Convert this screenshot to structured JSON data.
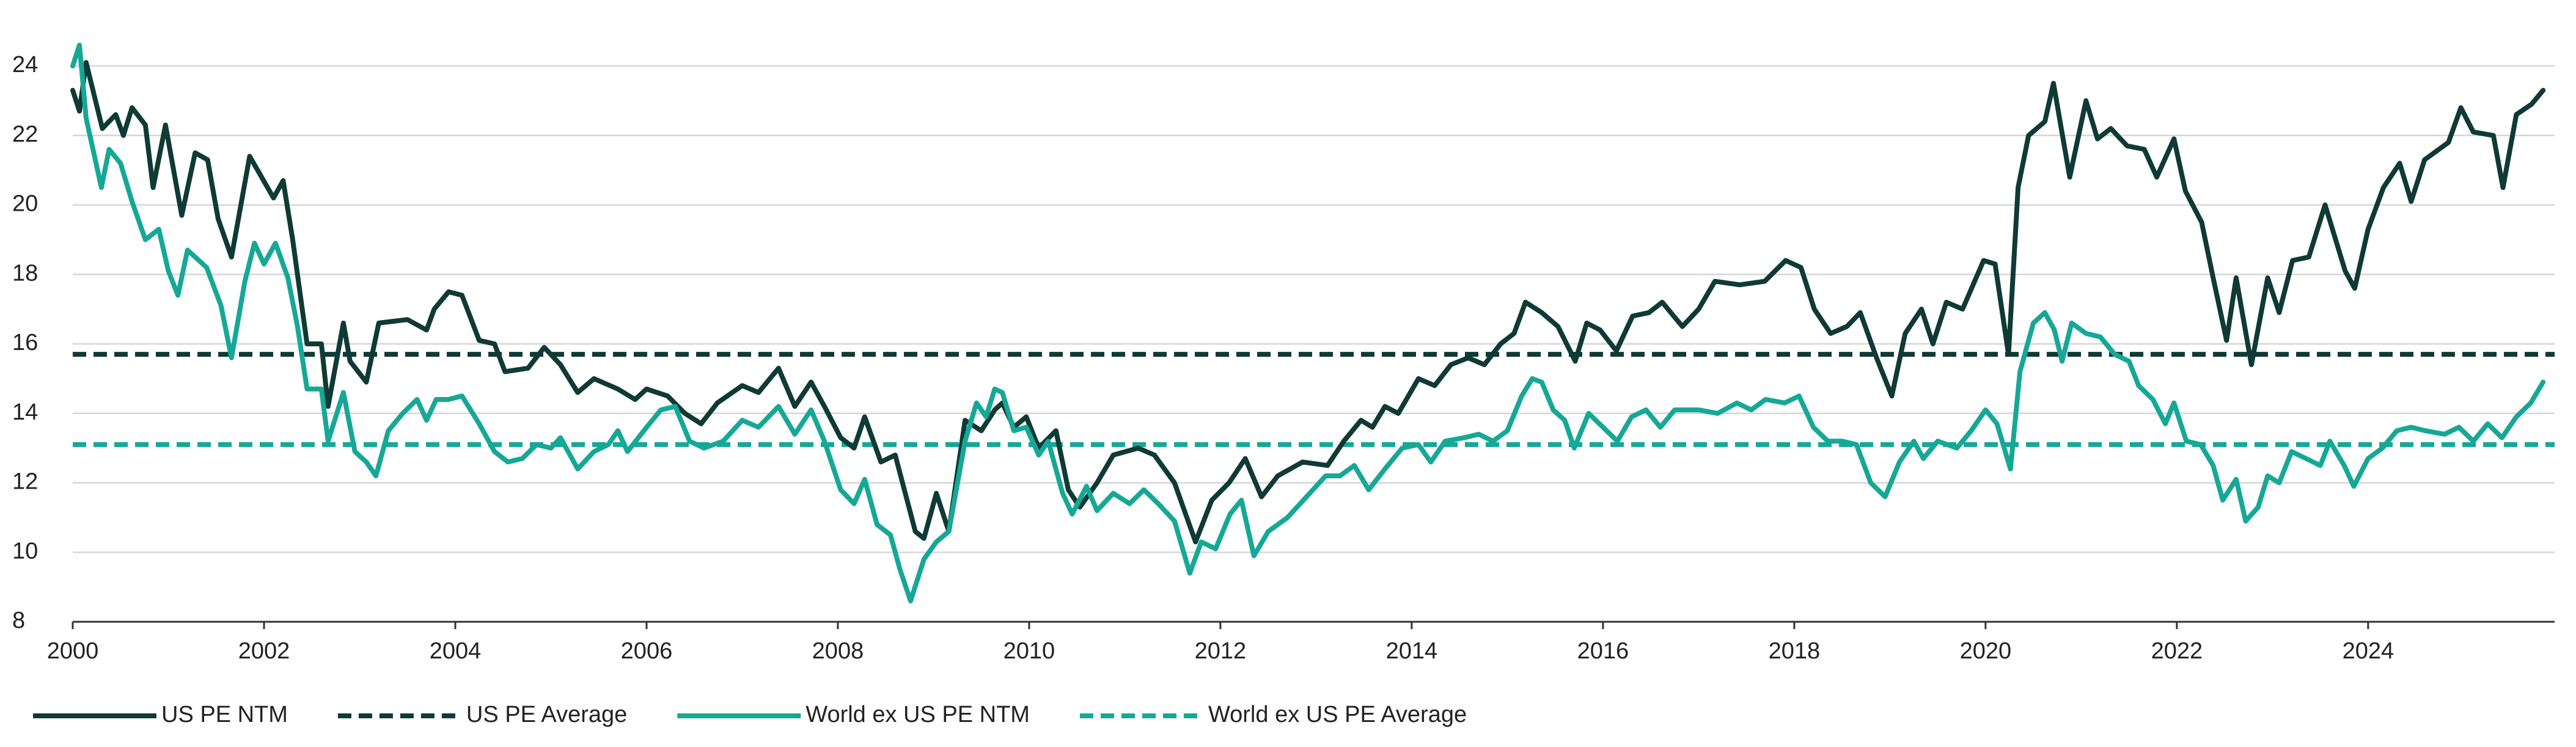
{
  "chart_data": {
    "type": "line",
    "xlim": [
      2000,
      2025.95
    ],
    "ylim": [
      8,
      24
    ],
    "xticks": [
      2000,
      2002,
      2004,
      2006,
      2008,
      2010,
      2012,
      2014,
      2016,
      2018,
      2020,
      2022,
      2024
    ],
    "yticks": [
      8,
      10,
      12,
      14,
      16,
      18,
      20,
      22,
      24
    ],
    "grid": true,
    "legend": "bottom-left",
    "series": [
      {
        "name": "US PE NTM",
        "color": "#0f3a35",
        "dashed": false,
        "x": [
          2000.0,
          2000.07,
          2000.14,
          2000.31,
          2000.45,
          2000.53,
          2000.62,
          2000.76,
          2000.84,
          2000.97,
          2001.14,
          2001.28,
          2001.41,
          2001.52,
          2001.66,
          2001.85,
          2002.1,
          2002.2,
          2002.3,
          2002.45,
          2002.6,
          2002.67,
          2002.83,
          2002.9,
          2003.07,
          2003.2,
          2003.5,
          2003.7,
          2003.78,
          2003.93,
          2004.07,
          2004.25,
          2004.41,
          2004.52,
          2004.76,
          2004.93,
          2005.1,
          2005.28,
          2005.45,
          2005.7,
          2005.88,
          2006.0,
          2006.22,
          2006.4,
          2006.57,
          2006.74,
          2007.0,
          2007.17,
          2007.38,
          2007.55,
          2007.72,
          2007.86,
          2008.03,
          2008.17,
          2008.28,
          2008.45,
          2008.6,
          2008.81,
          2008.9,
          2009.03,
          2009.16,
          2009.33,
          2009.5,
          2009.64,
          2009.72,
          2009.84,
          2009.97,
          2010.1,
          2010.28,
          2010.41,
          2010.53,
          2010.71,
          2010.88,
          2011.14,
          2011.31,
          2011.52,
          2011.74,
          2011.91,
          2012.09,
          2012.26,
          2012.43,
          2012.6,
          2012.86,
          2013.12,
          2013.29,
          2013.47,
          2013.59,
          2013.72,
          2013.86,
          2014.07,
          2014.24,
          2014.41,
          2014.59,
          2014.76,
          2014.93,
          2015.07,
          2015.19,
          2015.36,
          2015.53,
          2015.71,
          2015.83,
          2015.97,
          2016.14,
          2016.31,
          2016.48,
          2016.62,
          2016.83,
          2017.0,
          2017.17,
          2017.43,
          2017.69,
          2017.91,
          2018.07,
          2018.21,
          2018.38,
          2018.55,
          2018.69,
          2018.86,
          2019.02,
          2019.16,
          2019.33,
          2019.45,
          2019.59,
          2019.76,
          2019.98,
          2020.1,
          2020.24,
          2020.34,
          2020.45,
          2020.62,
          2020.71,
          2020.88,
          2021.05,
          2021.17,
          2021.31,
          2021.48,
          2021.66,
          2021.79,
          2021.97,
          2022.09,
          2022.26,
          2022.38,
          2022.52,
          2022.62,
          2022.78,
          2022.95,
          2023.07,
          2023.21,
          2023.38,
          2023.55,
          2023.76,
          2023.86,
          2024.0,
          2024.16,
          2024.33,
          2024.45,
          2024.59,
          2024.84,
          2024.97,
          2025.1,
          2025.31,
          2025.41,
          2025.55,
          2025.71,
          2025.83
        ],
        "values": [
          23.3,
          22.7,
          24.1,
          22.2,
          22.6,
          22.0,
          22.8,
          22.3,
          20.5,
          22.3,
          19.7,
          21.5,
          21.3,
          19.6,
          18.5,
          21.4,
          20.2,
          20.7,
          19.0,
          16.0,
          16.0,
          14.2,
          16.6,
          15.5,
          14.9,
          16.6,
          16.7,
          16.4,
          17.0,
          17.5,
          17.4,
          16.1,
          16.0,
          15.2,
          15.3,
          15.9,
          15.4,
          14.6,
          15.0,
          14.7,
          14.4,
          14.7,
          14.5,
          14.0,
          13.7,
          14.3,
          14.8,
          14.6,
          15.3,
          14.2,
          14.9,
          14.2,
          13.3,
          13.0,
          13.9,
          12.6,
          12.8,
          10.6,
          10.4,
          11.7,
          10.6,
          13.8,
          13.5,
          14.1,
          14.3,
          13.6,
          13.9,
          13.0,
          13.5,
          11.8,
          11.3,
          12.0,
          12.8,
          13.0,
          12.8,
          12.0,
          10.3,
          11.5,
          12.0,
          12.7,
          11.6,
          12.2,
          12.6,
          12.5,
          13.2,
          13.8,
          13.6,
          14.2,
          14.0,
          15.0,
          14.8,
          15.4,
          15.6,
          15.4,
          16.0,
          16.3,
          17.2,
          16.9,
          16.5,
          15.5,
          16.6,
          16.4,
          15.8,
          16.8,
          16.9,
          17.2,
          16.5,
          17.0,
          17.8,
          17.7,
          17.8,
          18.4,
          18.2,
          17.0,
          16.3,
          16.5,
          16.9,
          15.6,
          14.5,
          16.3,
          17.0,
          16.0,
          17.2,
          17.0,
          18.4,
          18.3,
          15.7,
          20.5,
          22.0,
          22.4,
          23.5,
          20.8,
          23.0,
          21.9,
          22.2,
          21.7,
          21.6,
          20.8,
          21.9,
          20.4,
          19.5,
          17.9,
          16.1,
          17.9,
          15.4,
          17.9,
          16.9,
          18.4,
          18.5,
          20.0,
          18.1,
          17.6,
          19.3,
          20.5,
          21.2,
          20.1,
          21.3,
          21.8,
          22.8,
          22.1,
          22.0,
          20.5,
          22.6,
          22.9,
          23.3
        ]
      },
      {
        "name": "US PE Average",
        "color": "#0f3a35",
        "dashed": true,
        "x": [
          2000,
          2025.95
        ],
        "values": [
          15.7,
          15.7
        ]
      },
      {
        "name": "World ex US PE NTM",
        "color": "#16a896",
        "dashed": false,
        "x": [
          2000.0,
          2000.07,
          2000.14,
          2000.3,
          2000.38,
          2000.5,
          2000.62,
          2000.76,
          2000.9,
          2001.0,
          2001.1,
          2001.2,
          2001.4,
          2001.55,
          2001.66,
          2001.8,
          2001.9,
          2002.0,
          2002.12,
          2002.25,
          2002.35,
          2002.45,
          2002.6,
          2002.67,
          2002.83,
          2002.95,
          2003.07,
          2003.17,
          2003.3,
          2003.45,
          2003.6,
          2003.7,
          2003.8,
          2003.93,
          2004.07,
          2004.25,
          2004.41,
          2004.55,
          2004.7,
          2004.85,
          2005.0,
          2005.1,
          2005.28,
          2005.45,
          2005.6,
          2005.7,
          2005.8,
          2006.0,
          2006.15,
          2006.3,
          2006.45,
          2006.6,
          2006.8,
          2007.0,
          2007.17,
          2007.38,
          2007.55,
          2007.72,
          2007.86,
          2008.03,
          2008.17,
          2008.28,
          2008.41,
          2008.55,
          2008.65,
          2008.76,
          2008.9,
          2009.03,
          2009.16,
          2009.33,
          2009.45,
          2009.55,
          2009.64,
          2009.72,
          2009.84,
          2009.97,
          2010.1,
          2010.2,
          2010.35,
          2010.45,
          2010.6,
          2010.71,
          2010.88,
          2011.05,
          2011.2,
          2011.35,
          2011.52,
          2011.68,
          2011.8,
          2011.95,
          2012.1,
          2012.22,
          2012.35,
          2012.5,
          2012.7,
          2012.9,
          2013.1,
          2013.25,
          2013.4,
          2013.55,
          2013.72,
          2013.9,
          2014.07,
          2014.2,
          2014.35,
          2014.55,
          2014.7,
          2014.85,
          2015.0,
          2015.15,
          2015.26,
          2015.36,
          2015.48,
          2015.6,
          2015.7,
          2015.85,
          2016.0,
          2016.15,
          2016.3,
          2016.45,
          2016.6,
          2016.75,
          2017.0,
          2017.2,
          2017.4,
          2017.55,
          2017.7,
          2017.9,
          2018.05,
          2018.2,
          2018.35,
          2018.5,
          2018.65,
          2018.8,
          2018.95,
          2019.1,
          2019.25,
          2019.35,
          2019.5,
          2019.7,
          2019.85,
          2020.0,
          2020.12,
          2020.26,
          2020.36,
          2020.5,
          2020.62,
          2020.72,
          2020.8,
          2020.9,
          2021.05,
          2021.2,
          2021.35,
          2021.5,
          2021.6,
          2021.75,
          2021.88,
          2021.97,
          2022.1,
          2022.25,
          2022.38,
          2022.48,
          2022.62,
          2022.72,
          2022.85,
          2022.95,
          2023.07,
          2023.2,
          2023.35,
          2023.5,
          2023.6,
          2023.75,
          2023.85,
          2024.0,
          2024.15,
          2024.3,
          2024.45,
          2024.6,
          2024.8,
          2024.95,
          2025.1,
          2025.25,
          2025.4,
          2025.55,
          2025.7,
          2025.83
        ],
        "values": [
          24.0,
          24.6,
          22.5,
          20.5,
          21.6,
          21.2,
          20.1,
          19.0,
          19.3,
          18.1,
          17.4,
          18.7,
          18.2,
          17.1,
          15.6,
          17.8,
          18.9,
          18.3,
          18.9,
          17.9,
          16.5,
          14.7,
          14.7,
          13.2,
          14.6,
          12.9,
          12.6,
          12.2,
          13.5,
          14.0,
          14.4,
          13.8,
          14.4,
          14.4,
          14.5,
          13.7,
          12.9,
          12.6,
          12.7,
          13.1,
          13.0,
          13.3,
          12.4,
          12.9,
          13.1,
          13.5,
          12.9,
          13.6,
          14.1,
          14.2,
          13.2,
          13.0,
          13.2,
          13.8,
          13.6,
          14.2,
          13.4,
          14.1,
          13.2,
          11.8,
          11.4,
          12.1,
          10.8,
          10.5,
          9.5,
          8.6,
          9.8,
          10.3,
          10.6,
          13.2,
          14.3,
          13.9,
          14.7,
          14.6,
          13.5,
          13.6,
          12.8,
          13.2,
          11.7,
          11.1,
          11.9,
          11.2,
          11.7,
          11.4,
          11.8,
          11.4,
          10.9,
          9.4,
          10.3,
          10.1,
          11.1,
          11.5,
          9.9,
          10.6,
          11.0,
          11.6,
          12.2,
          12.2,
          12.5,
          11.8,
          12.4,
          13.0,
          13.1,
          12.6,
          13.2,
          13.3,
          13.4,
          13.2,
          13.5,
          14.5,
          15.0,
          14.9,
          14.1,
          13.8,
          13.0,
          14.0,
          13.6,
          13.2,
          13.9,
          14.1,
          13.6,
          14.1,
          14.1,
          14.0,
          14.3,
          14.1,
          14.4,
          14.3,
          14.5,
          13.6,
          13.2,
          13.2,
          13.1,
          12.0,
          11.6,
          12.6,
          13.2,
          12.7,
          13.2,
          13.0,
          13.5,
          14.1,
          13.7,
          12.4,
          15.2,
          16.6,
          16.9,
          16.4,
          15.5,
          16.6,
          16.3,
          16.2,
          15.7,
          15.5,
          14.8,
          14.4,
          13.7,
          14.3,
          13.2,
          13.1,
          12.5,
          11.5,
          12.1,
          10.9,
          11.3,
          12.2,
          12.0,
          12.9,
          12.7,
          12.5,
          13.2,
          12.5,
          11.9,
          12.7,
          13.0,
          13.5,
          13.6,
          13.5,
          13.4,
          13.6,
          13.2,
          13.7,
          13.3,
          13.9,
          14.3,
          14.9
        ]
      },
      {
        "name": "World ex US PE Average",
        "color": "#16a896",
        "dashed": true,
        "x": [
          2000,
          2025.95
        ],
        "values": [
          13.1,
          13.1
        ]
      }
    ]
  }
}
